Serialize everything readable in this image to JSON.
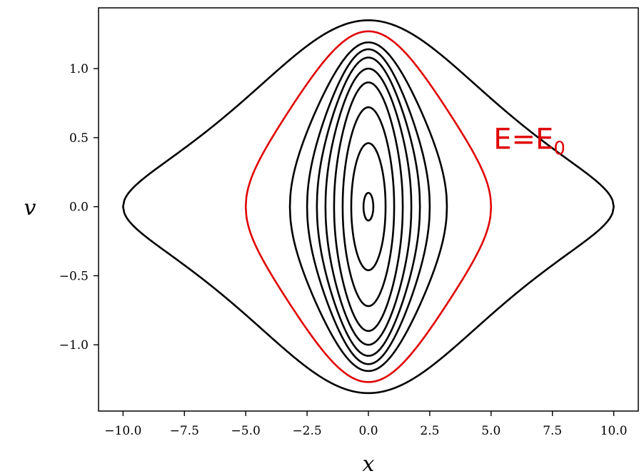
{
  "chart_data": {
    "type": "line",
    "title": "",
    "xlabel": "x",
    "ylabel": "v",
    "xlim": [
      -11.0,
      11.0
    ],
    "ylim": [
      -1.48,
      1.44
    ],
    "xticks": [
      -10.0,
      -7.5,
      -5.0,
      -2.5,
      0.0,
      2.5,
      5.0,
      7.5,
      10.0
    ],
    "xtick_labels": [
      "−10.0",
      "−7.5",
      "−5.0",
      "−2.5",
      "0.0",
      "2.5",
      "5.0",
      "7.5",
      "10.0"
    ],
    "yticks": [
      -1.0,
      -0.5,
      0.0,
      0.5,
      1.0
    ],
    "ytick_labels": [
      "−1.0",
      "−0.5",
      "0.0",
      "0.5",
      "1.0"
    ],
    "grid": false,
    "legend": "none",
    "annotation": {
      "text": "E=E",
      "subscript": "0",
      "x": 5.1,
      "y": 0.42,
      "color": "#e00000"
    },
    "series": [
      {
        "x_max": 0.2,
        "v_max": 0.1,
        "color": "#000000"
      },
      {
        "x_max": 0.7,
        "v_max": 0.46,
        "color": "#000000"
      },
      {
        "x_max": 1.05,
        "v_max": 0.72,
        "color": "#000000"
      },
      {
        "x_max": 1.4,
        "v_max": 0.9,
        "color": "#000000"
      },
      {
        "x_max": 1.75,
        "v_max": 1.0,
        "color": "#000000"
      },
      {
        "x_max": 2.1,
        "v_max": 1.08,
        "color": "#000000"
      },
      {
        "x_max": 2.5,
        "v_max": 1.14,
        "color": "#000000"
      },
      {
        "x_max": 3.2,
        "v_max": 1.19,
        "color": "#000000"
      },
      {
        "x_max": 5.0,
        "v_max": 1.27,
        "color": "#e00000"
      },
      {
        "x_max": 10.0,
        "v_max": 1.35,
        "color": "#000000"
      }
    ]
  }
}
